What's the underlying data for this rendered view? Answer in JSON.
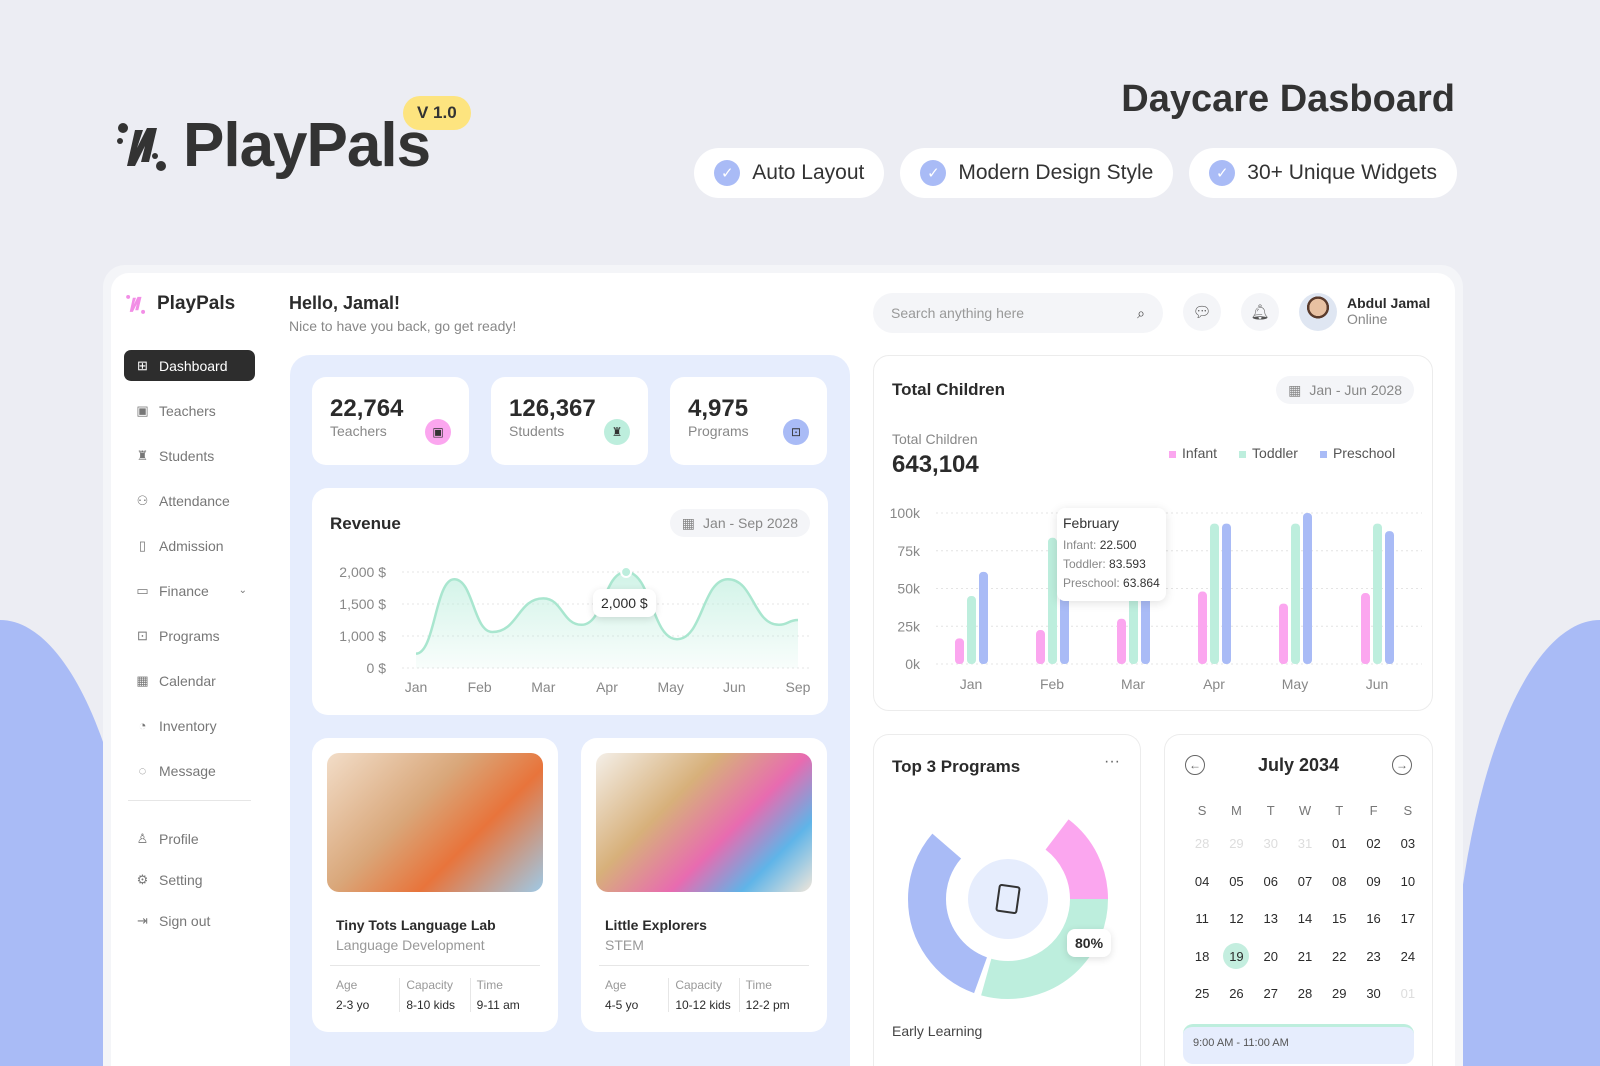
{
  "hero": {
    "brand": "PlayPals",
    "version": "V 1.0",
    "title": "Daycare Dasboard",
    "features": [
      "Auto Layout",
      "Modern Design Style",
      "30+ Unique Widgets"
    ]
  },
  "sidebar": {
    "brand": "PlayPals",
    "items": [
      {
        "label": "Dashboard",
        "icon": "grid-icon"
      },
      {
        "label": "Teachers",
        "icon": "board-icon"
      },
      {
        "label": "Students",
        "icon": "cap-icon"
      },
      {
        "label": "Attendance",
        "icon": "users-icon"
      },
      {
        "label": "Admission",
        "icon": "doc-icon"
      },
      {
        "label": "Finance",
        "icon": "money-icon"
      },
      {
        "label": "Programs",
        "icon": "presentation-icon"
      },
      {
        "label": "Calendar",
        "icon": "calendar-icon"
      },
      {
        "label": "Inventory",
        "icon": "pie-icon"
      },
      {
        "label": "Message",
        "icon": "chat-icon"
      }
    ],
    "bottom": [
      {
        "label": "Profile"
      },
      {
        "label": "Setting"
      },
      {
        "label": "Sign out"
      }
    ]
  },
  "header": {
    "greeting": "Hello, Jamal!",
    "subtitle": "Nice to have you back, go get ready!",
    "search_placeholder": "Search anything here",
    "user_name": "Abdul Jamal",
    "user_status": "Online"
  },
  "stats": [
    {
      "value": "22,764",
      "label": "Teachers",
      "color": "#fba6ef"
    },
    {
      "value": "126,367",
      "label": "Students",
      "color": "#bdeedd"
    },
    {
      "value": "4,975",
      "label": "Programs",
      "color": "#a9bbf6"
    }
  ],
  "revenue": {
    "title": "Revenue",
    "range": "Jan - Sep 2028",
    "tooltip": "2,000 $"
  },
  "programs": [
    {
      "name": "Tiny Tots Language Lab",
      "category": "Language Development",
      "age": "2-3 yo",
      "capacity": "8-10 kids",
      "time": "9-11 am"
    },
    {
      "name": "Little Explorers",
      "category": "STEM",
      "age": "4-5 yo",
      "capacity": "10-12 kids",
      "time": "12-2 pm"
    }
  ],
  "program_meta_labels": {
    "age": "Age",
    "capacity": "Capacity",
    "time": "Time"
  },
  "total_children": {
    "title": "Total Children",
    "range": "Jan - Jun 2028",
    "label": "Total Children",
    "value": "643,104",
    "tooltip": {
      "title": "February",
      "lines": [
        {
          "k": "Infant:",
          "v": "22.500"
        },
        {
          "k": "Toddler:",
          "v": "83.593"
        },
        {
          "k": "Preschool:",
          "v": "63.864"
        }
      ]
    }
  },
  "top_programs": {
    "title": "Top 3 Programs",
    "more": "···",
    "percent_label": "80%",
    "caption": "Early Learning"
  },
  "calendar": {
    "month": "July 2034",
    "dow": [
      "S",
      "M",
      "T",
      "W",
      "T",
      "F",
      "S"
    ],
    "days": [
      "28",
      "29",
      "30",
      "31",
      "01",
      "02",
      "03",
      "04",
      "05",
      "06",
      "07",
      "08",
      "09",
      "10",
      "11",
      "12",
      "13",
      "14",
      "15",
      "16",
      "17",
      "18",
      "19",
      "20",
      "21",
      "22",
      "23",
      "24",
      "25",
      "26",
      "27",
      "28",
      "29",
      "30",
      "01"
    ],
    "muted": [
      0,
      1,
      2,
      3,
      34
    ],
    "today": 22,
    "event": "9:00 AM - 11:00 AM"
  },
  "chart_data": [
    {
      "type": "area",
      "title": "Revenue",
      "x_labels": [
        "Jan",
        "Feb",
        "Mar",
        "Apr",
        "May",
        "Jun",
        "Sep"
      ],
      "y_ticks": [
        "2,000 $",
        "1,500 $",
        "1,000 $",
        "0 $"
      ],
      "ylim": [
        0,
        2000
      ],
      "points": [
        [
          0,
          300
        ],
        [
          0.6,
          1850
        ],
        [
          1.2,
          750
        ],
        [
          2,
          1450
        ],
        [
          2.6,
          900
        ],
        [
          3.3,
          2000
        ],
        [
          4.1,
          600
        ],
        [
          4.9,
          1850
        ],
        [
          5.7,
          900
        ],
        [
          6,
          1000
        ]
      ],
      "highlight": [
        3.3,
        2000
      ]
    },
    {
      "type": "bar",
      "title": "Total Children",
      "categories": [
        "Jan",
        "Feb",
        "Mar",
        "Apr",
        "May",
        "Jun"
      ],
      "y_ticks": [
        "100k",
        "75k",
        "50k",
        "25k",
        "0k"
      ],
      "ylim": [
        0,
        100000
      ],
      "series": [
        {
          "name": "Infant",
          "color": "#fba6ef",
          "values": [
            17000,
            22500,
            30000,
            48000,
            40000,
            47000
          ]
        },
        {
          "name": "Toddler",
          "color": "#bdeedd",
          "values": [
            45000,
            83593,
            60000,
            93000,
            93000,
            93000
          ]
        },
        {
          "name": "Preschool",
          "color": "#a9bbf6",
          "values": [
            61000,
            63864,
            60000,
            93000,
            100000,
            88000
          ]
        }
      ]
    },
    {
      "type": "pie",
      "title": "Top 3 Programs",
      "slices": [
        {
          "color": "#fba6ef",
          "value": 24
        },
        {
          "color": "#bdeedd",
          "value": 44
        },
        {
          "color": "#a9bbf6",
          "value": 32
        }
      ]
    }
  ]
}
